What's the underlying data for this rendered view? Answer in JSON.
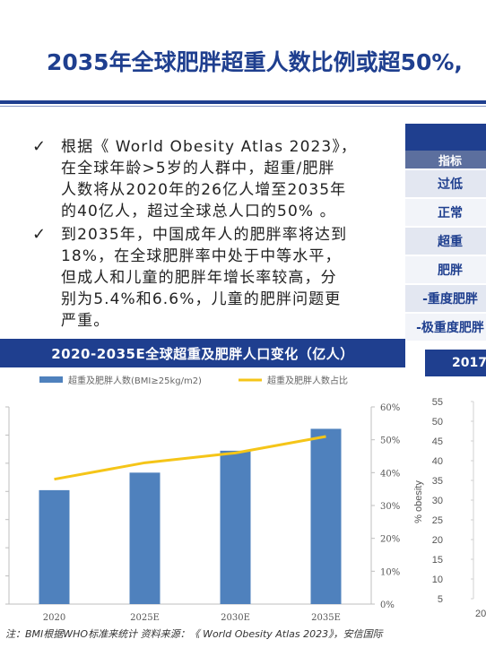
{
  "headline": "2035年全球肥胖超重人数比例或超50%,",
  "bullets": [
    "根据《 World Obesity Atlas 2023》，\n在全球年龄>5岁的人群中，超重/肥胖\n人数将从2020年的26亿人增至2035年\n的40亿人，超过全球总人口的50% 。",
    "到2035年，中国成年人的肥胖率将达到\n18%，在全球肥胖率中处于中等水平，\n但成人和儿童的肥胖年增长率较高，分\n别为5.4%和6.6%，儿童的肥胖问题更\n严重。"
  ],
  "check_mark": "✓",
  "bmi_table": {
    "header": "指标",
    "rows": [
      "过低",
      "正常",
      "超重",
      "肥胖",
      "-重度肥胖",
      "-极重度肥胖"
    ]
  },
  "chart_data": [
    {
      "type": "bar",
      "title": "2020-2035E全球超重及肥胖人口变化（亿人）",
      "categories": [
        "2020",
        "2025E",
        "2030E",
        "2035E"
      ],
      "series": [
        {
          "name": "超重及肥胖人数(BMI≥25kg/m2)",
          "type": "bar",
          "axis": "left",
          "values": [
            26,
            30,
            35,
            40
          ],
          "color": "#4f81bd"
        },
        {
          "name": "超重及肥胖人数占比",
          "type": "line",
          "axis": "right",
          "values": [
            0.38,
            0.43,
            0.46,
            0.51
          ],
          "color": "#f5c518"
        }
      ],
      "left_ticks": [
        "",
        "",
        "",
        "",
        "",
        "",
        "",
        ""
      ],
      "right_ticks": [
        "0%",
        "10%",
        "20%",
        "30%",
        "40%",
        "50%",
        "60%"
      ],
      "left_ylim": [
        0,
        45
      ],
      "right_ylim": [
        0,
        0.6
      ],
      "legend_position": "top"
    },
    {
      "type": "line",
      "title": "2017",
      "ylabel": "% obesity",
      "y_ticks": [
        "5",
        "10",
        "15",
        "20",
        "25",
        "30",
        "35",
        "40",
        "45",
        "50",
        "55"
      ],
      "ylim": [
        5,
        55
      ],
      "x_ticks_visible": [
        "20"
      ]
    }
  ],
  "note": "注：BMI根据WHO标准来统计 资料来源：《 World Obesity Atlas 2023》，安信国际",
  "colors": {
    "brand": "#1f3f8f",
    "bar": "#4f81bd",
    "line": "#f5c518"
  }
}
